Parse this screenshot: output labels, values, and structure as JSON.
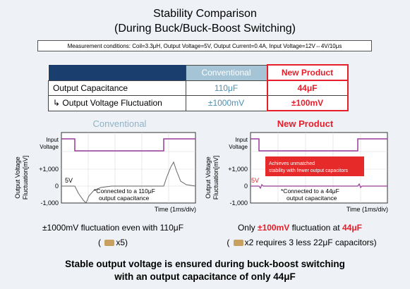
{
  "title_line1": "Stability Comparison",
  "title_line2": "(During Buck/Buck-Boost Switching)",
  "conditions": "Measurement conditions: Coil=3.3μH, Output Voltage=5V, Output Current=0.4A, Input Voltage=12V⇔4V/10μs",
  "table": {
    "col_conventional": "Conventional",
    "col_new": "New Product",
    "row1_label": "Output Capacitance",
    "row1_conv": "110μF",
    "row1_new": "44μF",
    "row2_label": "Output Voltage Fluctuation",
    "row2_conv": "±1000mV",
    "row2_new": "±100mV"
  },
  "left_plot": {
    "title": "Conventional",
    "ylabel_line1": "Output Voltage",
    "ylabel_line2": "Fluctuation[mV]",
    "input_label_1": "Input",
    "input_label_2": "Voltage",
    "tick_pos": "+1,000",
    "tick_zero": "0",
    "tick_neg": "-1,000",
    "v5": "5V",
    "note_line1": "*Connected to a 110μF",
    "note_line2": "output capacitance",
    "xlabel": "Time (1ms/div)"
  },
  "right_plot": {
    "title": "New Product",
    "ylabel_line1": "Output Voltage",
    "ylabel_line2": "Fluctuation[mV]",
    "input_label_1": "Input",
    "input_label_2": "Voltage",
    "tick_pos": "+1,000",
    "tick_zero": "0",
    "tick_neg": "-1,000",
    "v5": "5V",
    "note_line1": "*Connected to a 44μF",
    "note_line2": "output capacitance",
    "xlabel": "Time (1ms/div)",
    "callout_line1": "Achieves unmatched",
    "callout_line2": "stability with fewer output capacitors"
  },
  "captions": {
    "left_line1": "±1000mV fluctuation even with 110μF",
    "left_paren_open": "(",
    "left_mult": "x5)",
    "right_prefix": "Only ",
    "right_value": "±100mV",
    "right_mid": " fluctuation at ",
    "right_cap": "44μF",
    "right_paren_open": "(",
    "right_mult": "x2 requires 3 less 22μF capacitors)"
  },
  "footer_line1": "Stable output voltage is ensured during buck-boost switching",
  "footer_line2": "with an output capacitance of only 44μF",
  "colors": {
    "accent_red": "#e61e2a",
    "conventional_blue": "#a5c4d6",
    "waveform_purple": "#9a3c9a",
    "capacitor_icon": "capacitor-icon"
  }
}
